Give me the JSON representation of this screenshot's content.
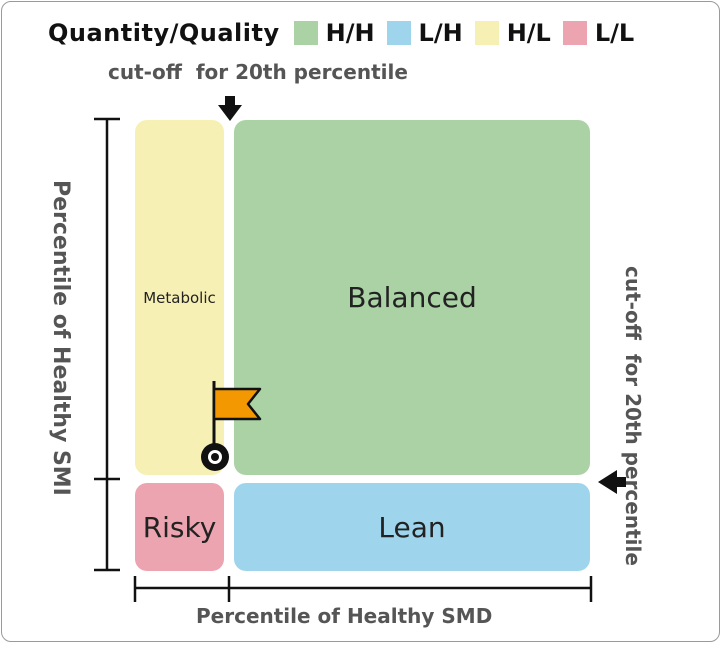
{
  "legend": {
    "title": "Quantity/Quality",
    "items": [
      {
        "label": "H/H",
        "color": "#aad2a4"
      },
      {
        "label": "L/H",
        "color": "#9ed5ec"
      },
      {
        "label": "H/L",
        "color": "#f7f0b4"
      },
      {
        "label": "L/L",
        "color": "#eca4b0"
      }
    ]
  },
  "annotations": {
    "cutoff_top": "cut-off  for 20th percentile",
    "cutoff_right": "cut-off  for 20th percentile"
  },
  "axes": {
    "y_label": "Percentile of Healthy SMI",
    "x_label": "Percentile of Healthy SMD"
  },
  "quadrants": {
    "metabolic": {
      "label": "Metabolic",
      "color": "#f7f0b4"
    },
    "balanced": {
      "label": "Balanced",
      "color": "#aad2a4"
    },
    "risky": {
      "label": "Risky",
      "color": "#eca4b0"
    },
    "lean": {
      "label": "Lean",
      "color": "#9ed5ec"
    }
  },
  "marker": {
    "color": "#f39800",
    "icon": "flag-icon"
  }
}
